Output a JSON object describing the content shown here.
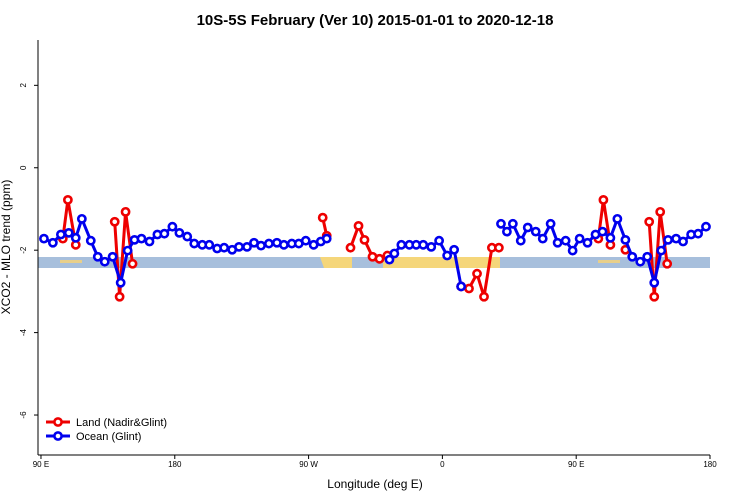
{
  "chart_data": {
    "type": "line",
    "title": "10S-5S February (Ver 10)   2015-01-01 to 2020-12-18",
    "x_label": "Longitude (deg E)",
    "y_label": "XCO2 - MLO trend (ppm)",
    "xlim": [
      88,
      540
    ],
    "ylim": [
      -6.97,
      3.1
    ],
    "xticks": [
      {
        "value": 90,
        "label": "90 E"
      },
      180,
      {
        "value": 270,
        "label": "90 W"
      },
      {
        "value": 360,
        "label": "0"
      },
      {
        "value": 450,
        "label": "90 E"
      },
      {
        "value": 540,
        "label": "180"
      }
    ],
    "yticks": [
      -6,
      -4,
      -2,
      0,
      2
    ],
    "legend": "bottom-left",
    "series": [
      {
        "name": "Land (Nadir&Glint)",
        "color": "#ee0000",
        "x": [
          104.7,
          108.1,
          113.4,
          null,
          139.6,
          142.9,
          146.9,
          151.6,
          null,
          279.5,
          282.2,
          null,
          298.2,
          303.6,
          307.6,
          313.0,
          317.7,
          323.0,
          null,
          372.6,
          377.9,
          383.3,
          388.0,
          393.3,
          398.0,
          null,
          464.9,
          468.3,
          473.0,
          null,
          483.1,
          null,
          499.1,
          502.5,
          506.5,
          511.2
        ],
        "values": [
          -1.72,
          -0.78,
          -1.87,
          null,
          -1.31,
          -3.13,
          -1.07,
          -2.33,
          null,
          -1.21,
          -1.65,
          null,
          -1.94,
          -1.41,
          -1.75,
          -2.16,
          -2.21,
          -2.13,
          null,
          -2.88,
          -2.93,
          -2.57,
          -3.13,
          -1.94,
          -1.94,
          null,
          -1.72,
          -0.78,
          -1.87,
          null,
          -1.99,
          null,
          -1.31,
          -3.13,
          -1.07,
          -2.33
        ]
      },
      {
        "name": "Ocean (Glint)",
        "color": "#0000ee",
        "x": [
          92.0,
          98.0,
          103.4,
          108.7,
          113.4,
          117.5,
          123.5,
          128.2,
          132.9,
          138.2,
          143.6,
          148.3,
          152.9,
          157.6,
          163.0,
          168.3,
          173.0,
          178.4,
          183.1,
          188.4,
          193.1,
          198.5,
          203.2,
          208.5,
          213.2,
          218.6,
          223.2,
          228.6,
          233.3,
          238.0,
          243.3,
          248.7,
          253.4,
          258.7,
          263.4,
          268.1,
          273.4,
          278.2,
          282.2,
          null,
          324.4,
          327.7,
          332.4,
          337.8,
          342.4,
          347.1,
          352.5,
          357.8,
          363.2,
          367.9,
          372.6,
          null,
          399.4,
          403.4,
          407.4,
          412.7,
          417.4,
          422.8,
          427.5,
          432.8,
          437.5,
          442.9,
          447.6,
          452.3,
          457.6,
          463.0,
          467.7,
          473.0,
          477.7,
          483.1,
          487.7,
          493.1,
          497.8,
          502.5,
          507.2,
          511.8,
          517.2,
          521.9,
          527.3,
          532.0,
          537.3
        ],
        "values": [
          -1.72,
          -1.82,
          -1.62,
          -1.58,
          -1.7,
          -1.24,
          -1.77,
          -2.16,
          -2.28,
          -2.16,
          -2.79,
          -2.01,
          -1.75,
          -1.72,
          -1.79,
          -1.62,
          -1.6,
          -1.43,
          -1.58,
          -1.67,
          -1.84,
          -1.87,
          -1.87,
          -1.96,
          -1.94,
          -1.99,
          -1.92,
          -1.92,
          -1.82,
          -1.89,
          -1.84,
          -1.82,
          -1.87,
          -1.84,
          -1.84,
          -1.77,
          -1.87,
          -1.79,
          -1.72,
          null,
          -2.23,
          -2.08,
          -1.87,
          -1.87,
          -1.87,
          -1.87,
          -1.92,
          -1.77,
          -2.13,
          -1.99,
          -2.88,
          null,
          -1.36,
          -1.55,
          -1.36,
          -1.77,
          -1.45,
          -1.55,
          -1.72,
          -1.36,
          -1.82,
          -1.77,
          -2.01,
          -1.72,
          -1.82,
          -1.62,
          -1.55,
          -1.7,
          -1.24,
          -1.75,
          -2.16,
          -2.28,
          -2.16,
          -2.79,
          -2.01,
          -1.75,
          -1.72,
          -1.79,
          -1.62,
          -1.6,
          -1.43
        ]
      }
    ]
  }
}
